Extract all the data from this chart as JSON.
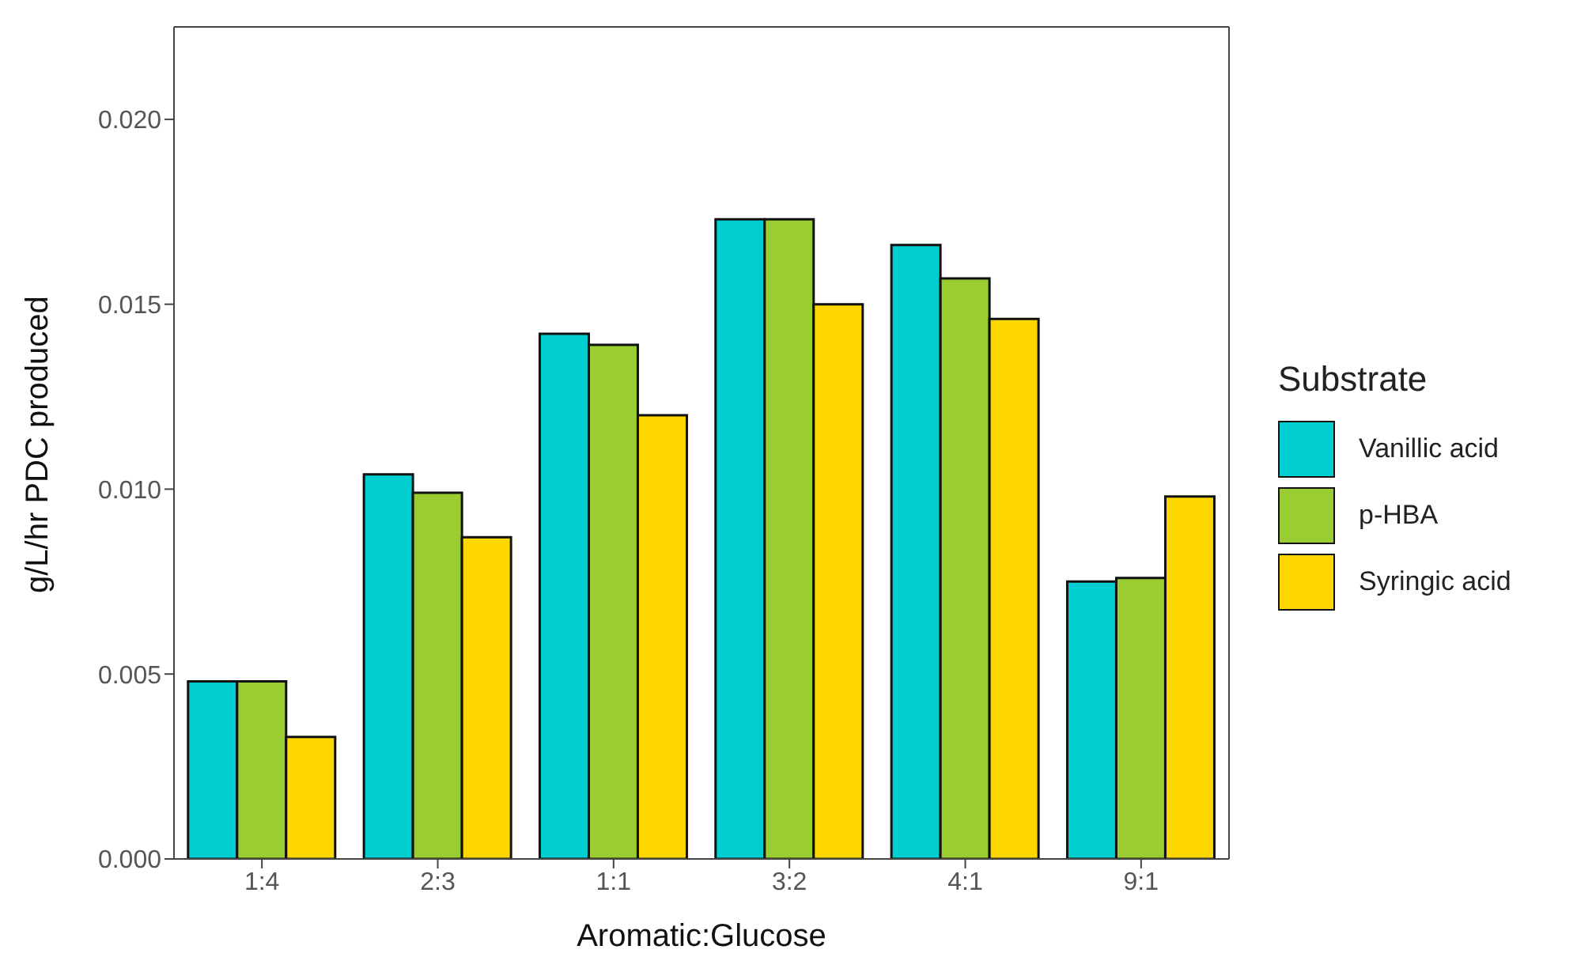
{
  "chart_data": {
    "type": "bar",
    "xlabel": "Aromatic:Glucose",
    "ylabel": "g/L/hr PDC produced",
    "legend_title": "Substrate",
    "legend": "right",
    "grid": false,
    "categories": [
      "1:4",
      "2:3",
      "1:1",
      "3:2",
      "4:1",
      "9:1"
    ],
    "ylim": [
      0,
      0.0225
    ],
    "yticks": [
      {
        "value": 0,
        "label": "0.000"
      },
      {
        "value": 0.005,
        "label": "0.005"
      },
      {
        "value": 0.01,
        "label": "0.010"
      },
      {
        "value": 0.015,
        "label": "0.015"
      },
      {
        "value": 0.02,
        "label": "0.020"
      }
    ],
    "series": [
      {
        "name": "Vanillic acid",
        "color": "#00ced1",
        "values": [
          0.0048,
          0.0104,
          0.0142,
          0.0173,
          0.0166,
          0.0075
        ]
      },
      {
        "name": "p-HBA",
        "color": "#9acd32",
        "values": [
          0.0048,
          0.0099,
          0.0139,
          0.0173,
          0.0157,
          0.0076
        ]
      },
      {
        "name": "Syringic acid",
        "color": "#ffd700",
        "values": [
          0.0033,
          0.0087,
          0.012,
          0.015,
          0.0146,
          0.0098
        ]
      }
    ]
  }
}
